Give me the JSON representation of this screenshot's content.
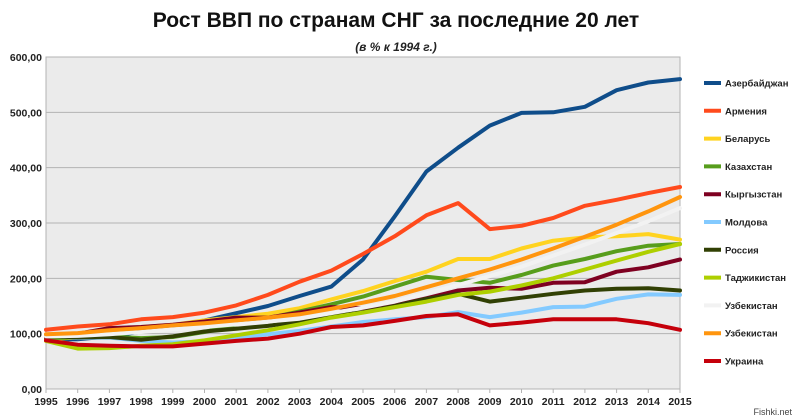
{
  "watermark": "Fishki.net",
  "chart_data": {
    "type": "line",
    "title": "Рост ВВП по странам СНГ за последние 20 лет",
    "subtitle": "(в % к 1994 г.)",
    "xlabel": "",
    "ylabel": "",
    "ylim": [
      0,
      600
    ],
    "yticks": [
      "0,00",
      "100,00",
      "200,00",
      "300,00",
      "400,00",
      "500,00",
      "600,00"
    ],
    "x": [
      1995,
      1996,
      1997,
      1998,
      1999,
      2000,
      2001,
      2002,
      2003,
      2004,
      2005,
      2006,
      2007,
      2008,
      2009,
      2010,
      2011,
      2012,
      2013,
      2014,
      2015
    ],
    "grid": true,
    "legend_position": "right",
    "series": [
      {
        "name": "Азербайджан",
        "color": "#0f4d8a",
        "values": [
          89,
          90,
          95,
          104,
          112,
          124,
          137,
          150,
          168,
          185,
          234,
          312,
          393,
          436,
          476,
          499,
          500,
          510,
          540,
          554,
          560
        ]
      },
      {
        "name": "Армения",
        "color": "#ff4a1c",
        "values": [
          107,
          113,
          117,
          126,
          130,
          138,
          151,
          170,
          194,
          214,
          244,
          276,
          314,
          336,
          289,
          295,
          309,
          331,
          342,
          354,
          365
        ]
      },
      {
        "name": "Беларусь",
        "color": "#ffd320",
        "values": [
          90,
          93,
          104,
          112,
          116,
          124,
          130,
          136,
          146,
          162,
          177,
          195,
          212,
          235,
          235,
          254,
          268,
          274,
          276,
          280,
          270
        ]
      },
      {
        "name": "Казахстан",
        "color": "#579d1c",
        "values": [
          92,
          93,
          95,
          92,
          94,
          103,
          117,
          128,
          140,
          153,
          167,
          185,
          203,
          197,
          192,
          206,
          223,
          235,
          249,
          259,
          262
        ]
      },
      {
        "name": "Кыргызстан",
        "color": "#7e0021",
        "values": [
          94,
          100,
          110,
          112,
          116,
          122,
          129,
          129,
          138,
          148,
          146,
          151,
          164,
          178,
          183,
          181,
          192,
          193,
          212,
          220,
          234
        ]
      },
      {
        "name": "Молдова",
        "color": "#83caff",
        "values": [
          98,
          92,
          93,
          87,
          84,
          86,
          91,
          99,
          105,
          113,
          121,
          126,
          130,
          139,
          130,
          138,
          148,
          149,
          163,
          171,
          170
        ]
      },
      {
        "name": "Россия",
        "color": "#314004",
        "values": [
          96,
          93,
          94,
          89,
          95,
          104,
          109,
          114,
          122,
          131,
          139,
          150,
          163,
          172,
          158,
          165,
          172,
          178,
          181,
          182,
          178
        ]
      },
      {
        "name": "Таджикистан",
        "color": "#aecf00",
        "values": [
          87,
          73,
          74,
          78,
          81,
          88,
          97,
          106,
          117,
          129,
          138,
          148,
          158,
          170,
          176,
          187,
          200,
          216,
          232,
          248,
          262
        ]
      },
      {
        "name": "Узбекистан",
        "color": "#f2f2f2",
        "values": [
          95,
          96,
          99,
          103,
          108,
          112,
          117,
          122,
          127,
          137,
          147,
          158,
          173,
          188,
          204,
          221,
          241,
          261,
          282,
          303,
          327
        ]
      },
      {
        "name": "Узбекистан",
        "color": "#ff950e",
        "values": [
          99,
          101,
          106,
          110,
          115,
          119,
          124,
          129,
          135,
          145,
          156,
          168,
          184,
          200,
          216,
          234,
          254,
          275,
          297,
          321,
          347
        ]
      },
      {
        "name": "Украина",
        "color": "#c5000b",
        "values": [
          88,
          80,
          78,
          77,
          77,
          82,
          87,
          91,
          100,
          112,
          115,
          123,
          132,
          135,
          115,
          120,
          126,
          126,
          126,
          119,
          107
        ]
      }
    ]
  }
}
